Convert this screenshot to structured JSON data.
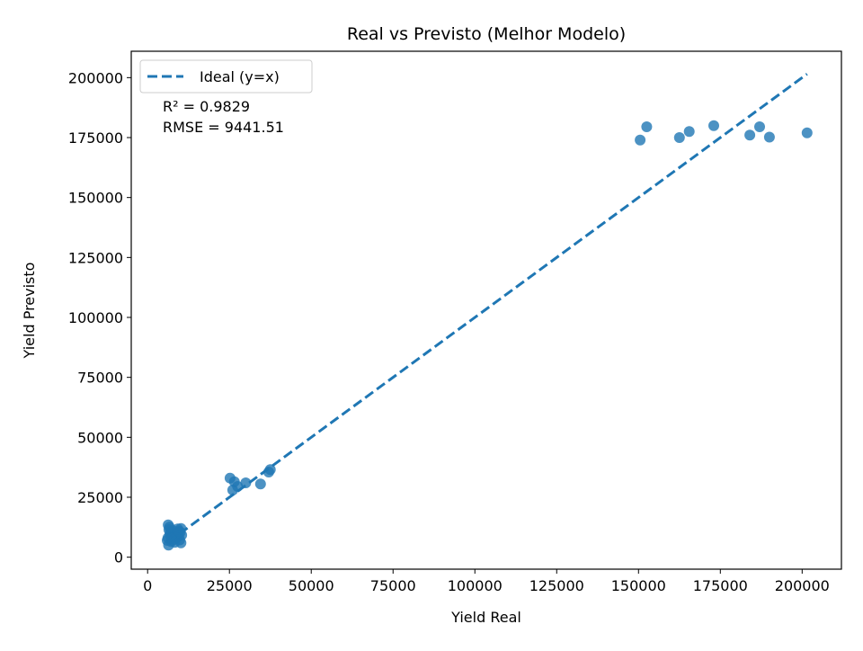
{
  "chart_data": {
    "type": "scatter",
    "title": "Real vs Previsto (Melhor Modelo)",
    "xlabel": "Yield Real",
    "ylabel": "Yield Previsto",
    "xlim": [
      -5000,
      212000
    ],
    "ylim": [
      -5000,
      211000
    ],
    "xticks": [
      0,
      25000,
      50000,
      75000,
      100000,
      125000,
      150000,
      175000,
      200000
    ],
    "yticks": [
      0,
      25000,
      50000,
      75000,
      100000,
      125000,
      150000,
      175000,
      200000
    ],
    "xtick_labels": [
      "0",
      "25000",
      "50000",
      "75000",
      "100000",
      "125000",
      "150000",
      "175000",
      "200000"
    ],
    "ytick_labels": [
      "0",
      "25000",
      "50000",
      "75000",
      "100000",
      "125000",
      "150000",
      "175000",
      "200000"
    ],
    "grid": false,
    "legend": {
      "position": "top-left",
      "entries": [
        "Ideal (y=x)"
      ]
    },
    "annotations": [
      "R² = 0.9829",
      "RMSE = 9441.51"
    ],
    "colors": {
      "points": "#1f77b4",
      "ideal_line": "#1f77b4"
    },
    "ideal_line": {
      "name": "Ideal (y=x)",
      "x": [
        6200,
        201500
      ],
      "y": [
        6200,
        201500
      ]
    },
    "points": [
      [
        6300,
        13500
      ],
      [
        6500,
        11500
      ],
      [
        6200,
        8000
      ],
      [
        6000,
        7000
      ],
      [
        6400,
        5000
      ],
      [
        6800,
        9500
      ],
      [
        7000,
        10500
      ],
      [
        7200,
        6500
      ],
      [
        7500,
        8500
      ],
      [
        7800,
        11000
      ],
      [
        8000,
        9000
      ],
      [
        8200,
        7500
      ],
      [
        8500,
        10000
      ],
      [
        8800,
        8200
      ],
      [
        9000,
        9800
      ],
      [
        9200,
        11800
      ],
      [
        9500,
        8800
      ],
      [
        9800,
        7200
      ],
      [
        10000,
        10500
      ],
      [
        10200,
        12000
      ],
      [
        10400,
        9200
      ],
      [
        10200,
        6000
      ],
      [
        6700,
        12500
      ],
      [
        7300,
        7800
      ],
      [
        8300,
        6200
      ],
      [
        9600,
        10800
      ],
      [
        25200,
        33000
      ],
      [
        26000,
        28000
      ],
      [
        26500,
        31500
      ],
      [
        27500,
        29500
      ],
      [
        30000,
        31000
      ],
      [
        34500,
        30500
      ],
      [
        37000,
        35500
      ],
      [
        37500,
        36500
      ],
      [
        150500,
        174000
      ],
      [
        152500,
        179500
      ],
      [
        162500,
        175000
      ],
      [
        165500,
        177500
      ],
      [
        173000,
        180000
      ],
      [
        184000,
        176000
      ],
      [
        187000,
        179500
      ],
      [
        190000,
        175200
      ],
      [
        201500,
        177000
      ]
    ]
  }
}
